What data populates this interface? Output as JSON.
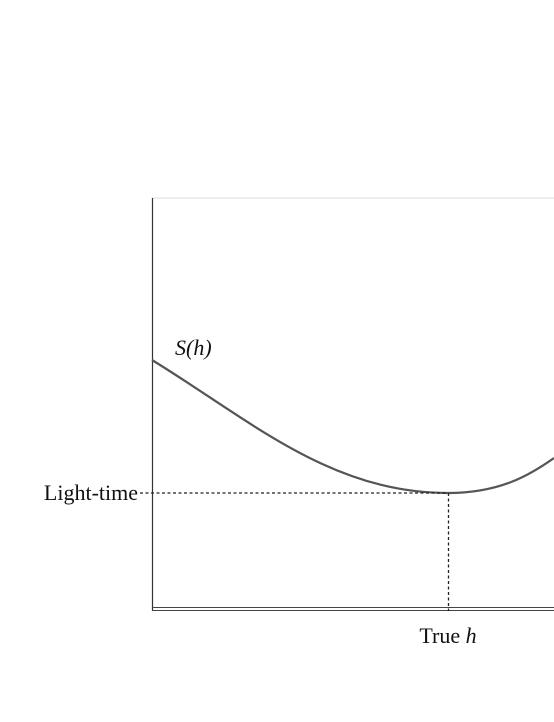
{
  "curve_label": "S(h)",
  "y_label": "Light-time",
  "x_label": {
    "text": "True",
    "variable": "h"
  }
}
